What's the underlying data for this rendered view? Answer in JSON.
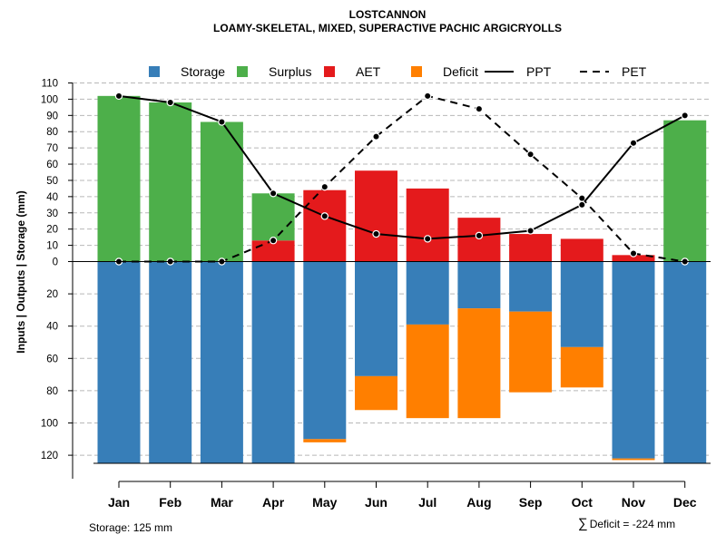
{
  "chart_data": {
    "type": "bar",
    "title": "LOSTCANNON",
    "subtitle": "LOAMY-SKELETAL, MIXED, SUPERACTIVE PACHIC ARGICRYOLLS",
    "ylabel": "Inputs | Outputs | Storage    (mm)",
    "categories": [
      "Jan",
      "Feb",
      "Mar",
      "Apr",
      "May",
      "Jun",
      "Jul",
      "Aug",
      "Sep",
      "Oct",
      "Nov",
      "Dec"
    ],
    "upper_ylim": [
      0,
      110
    ],
    "upper_ticks": [
      0,
      10,
      20,
      30,
      40,
      50,
      60,
      70,
      80,
      90,
      100,
      110
    ],
    "lower_ylim": [
      0,
      125
    ],
    "lower_ticks": [
      20,
      40,
      60,
      80,
      100,
      120
    ],
    "legend": [
      {
        "name": "Storage",
        "kind": "square",
        "color": "#377EB8"
      },
      {
        "name": "Surplus",
        "kind": "square",
        "color": "#4DAF4A"
      },
      {
        "name": "AET",
        "kind": "square",
        "color": "#E41A1C"
      },
      {
        "name": "Deficit",
        "kind": "square",
        "color": "#FF7F00"
      },
      {
        "name": "PPT",
        "kind": "solid-line",
        "color": "#000000"
      },
      {
        "name": "PET",
        "kind": "dashed-line",
        "color": "#000000"
      }
    ],
    "series": [
      {
        "name": "Surplus",
        "values": [
          102,
          98,
          86,
          29,
          0,
          0,
          0,
          0,
          0,
          0,
          0,
          87
        ]
      },
      {
        "name": "AET",
        "values": [
          0,
          0,
          0,
          13,
          44,
          56,
          45,
          27,
          17,
          14,
          4,
          0
        ]
      },
      {
        "name": "Storage",
        "values": [
          125,
          125,
          125,
          125,
          110,
          71,
          39,
          29,
          31,
          53,
          122,
          125
        ]
      },
      {
        "name": "Deficit",
        "values": [
          0,
          0,
          0,
          0,
          2,
          21,
          58,
          68,
          50,
          25,
          1,
          0
        ]
      },
      {
        "name": "PPT",
        "values": [
          102,
          98,
          86,
          42,
          28,
          17,
          14,
          16,
          19,
          35,
          73,
          90
        ]
      },
      {
        "name": "PET",
        "values": [
          0,
          0,
          0,
          13,
          46,
          77,
          102,
          94,
          66,
          39,
          5,
          0
        ]
      }
    ],
    "storage_note": "Storage: 125 mm",
    "deficit_note": "Deficit = -224 mm",
    "deficit_symbol": "∑"
  }
}
